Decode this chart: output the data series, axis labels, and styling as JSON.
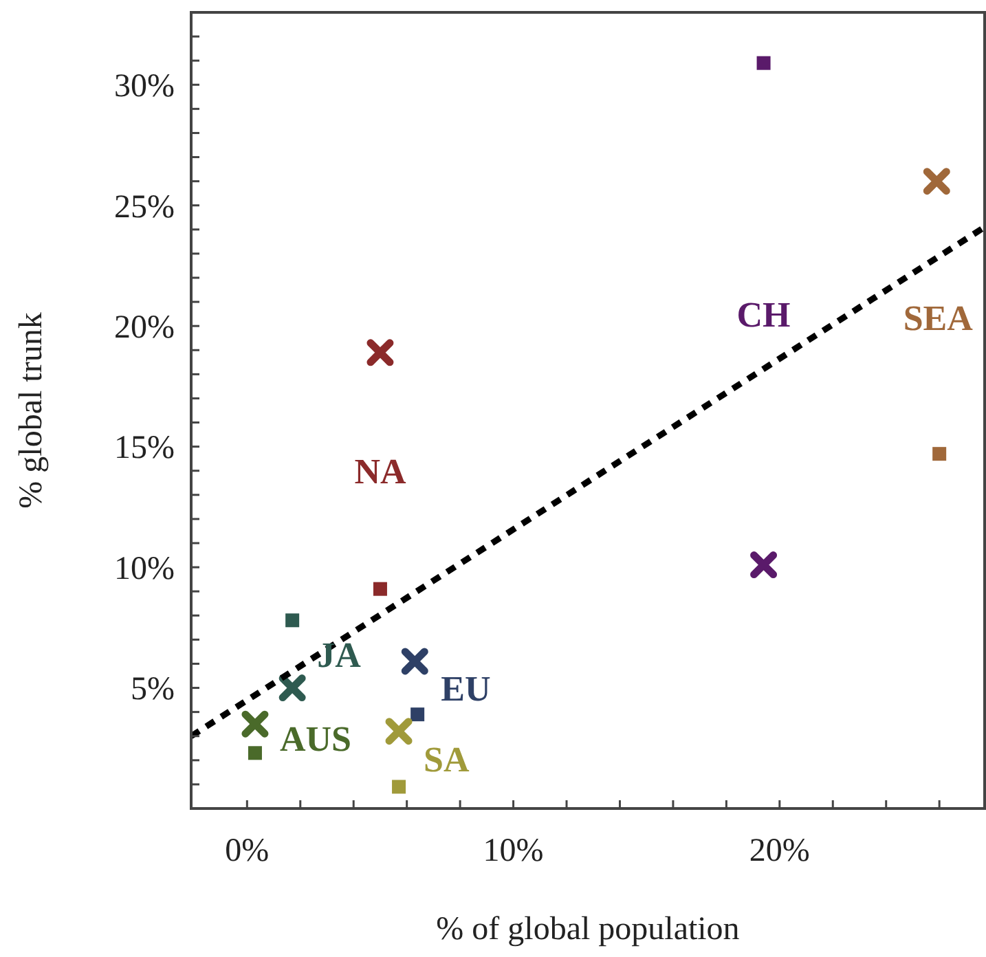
{
  "chart_data": {
    "type": "scatter",
    "xlabel": "% of global population",
    "ylabel": "% global trunk",
    "xlim": [
      -2.1,
      27.7
    ],
    "ylim": [
      0,
      33
    ],
    "xticks": [
      {
        "value": 0,
        "label": "0%"
      },
      {
        "value": 2,
        "label": null
      },
      {
        "value": 4,
        "label": null
      },
      {
        "value": 6,
        "label": null
      },
      {
        "value": 8,
        "label": null
      },
      {
        "value": 10,
        "label": "10%"
      },
      {
        "value": 12,
        "label": null
      },
      {
        "value": 14,
        "label": null
      },
      {
        "value": 16,
        "label": null
      },
      {
        "value": 18,
        "label": null
      },
      {
        "value": 20,
        "label": "20%"
      },
      {
        "value": 22,
        "label": null
      },
      {
        "value": 24,
        "label": null
      },
      {
        "value": 26,
        "label": null
      }
    ],
    "yticks": [
      {
        "value": 1,
        "label": null
      },
      {
        "value": 2,
        "label": null
      },
      {
        "value": 3,
        "label": null
      },
      {
        "value": 4,
        "label": null
      },
      {
        "value": 5,
        "label": "5%"
      },
      {
        "value": 6,
        "label": null
      },
      {
        "value": 7,
        "label": null
      },
      {
        "value": 8,
        "label": null
      },
      {
        "value": 9,
        "label": null
      },
      {
        "value": 10,
        "label": "10%"
      },
      {
        "value": 11,
        "label": null
      },
      {
        "value": 12,
        "label": null
      },
      {
        "value": 13,
        "label": null
      },
      {
        "value": 14,
        "label": null
      },
      {
        "value": 15,
        "label": "15%"
      },
      {
        "value": 16,
        "label": null
      },
      {
        "value": 17,
        "label": null
      },
      {
        "value": 18,
        "label": null
      },
      {
        "value": 19,
        "label": null
      },
      {
        "value": 20,
        "label": "20%"
      },
      {
        "value": 21,
        "label": null
      },
      {
        "value": 22,
        "label": null
      },
      {
        "value": 23,
        "label": null
      },
      {
        "value": 24,
        "label": null
      },
      {
        "value": 25,
        "label": "25%"
      },
      {
        "value": 26,
        "label": null
      },
      {
        "value": 27,
        "label": null
      },
      {
        "value": 28,
        "label": null
      },
      {
        "value": 29,
        "label": null
      },
      {
        "value": 30,
        "label": "30%"
      },
      {
        "value": 31,
        "label": null
      },
      {
        "value": 32,
        "label": null
      },
      {
        "value": 33,
        "label": null
      }
    ],
    "series": [
      {
        "name": "NA",
        "marker": "cross",
        "color": "#8b2a2a",
        "x": [
          5.0
        ],
        "values": [
          18.9
        ]
      },
      {
        "marker": "square",
        "color": "#8b2a2a",
        "x": [
          5.0
        ],
        "values": [
          9.1
        ]
      },
      {
        "name": "CH",
        "marker": "cross",
        "color": "#5a1a6a",
        "x": [
          19.4
        ],
        "values": [
          10.1
        ]
      },
      {
        "marker": "square",
        "color": "#5a1a6a",
        "x": [
          19.4
        ],
        "values": [
          30.9
        ]
      },
      {
        "name": "SEA",
        "marker": "cross",
        "color": "#a0683a",
        "x": [
          25.9
        ],
        "values": [
          26.0
        ]
      },
      {
        "marker": "square",
        "color": "#a0683a",
        "x": [
          26.0
        ],
        "values": [
          14.7
        ]
      },
      {
        "name": "JA",
        "marker": "cross",
        "color": "#2e5a50",
        "x": [
          1.7
        ],
        "values": [
          5.0
        ]
      },
      {
        "marker": "square",
        "color": "#2e5a50",
        "x": [
          1.7
        ],
        "values": [
          7.8
        ]
      },
      {
        "name": "EU",
        "marker": "cross",
        "color": "#2e4066",
        "x": [
          6.3
        ],
        "values": [
          6.1
        ]
      },
      {
        "marker": "square",
        "color": "#2e4066",
        "x": [
          6.4
        ],
        "values": [
          3.9
        ]
      },
      {
        "name": "SA",
        "marker": "cross",
        "color": "#a09a3a",
        "x": [
          5.7
        ],
        "values": [
          3.2
        ]
      },
      {
        "marker": "square",
        "color": "#a09a3a",
        "x": [
          5.7
        ],
        "values": [
          0.9
        ]
      },
      {
        "name": "AUS",
        "marker": "cross",
        "color": "#4a6a2a",
        "x": [
          0.3
        ],
        "values": [
          3.5
        ]
      },
      {
        "marker": "square",
        "color": "#4a6a2a",
        "x": [
          0.3
        ],
        "values": [
          2.3
        ]
      },
      {
        "type": "line",
        "line_style": "dashed",
        "color": "#000000",
        "x": [
          -2.1,
          27.7
        ],
        "values": [
          3.0,
          24.1
        ]
      }
    ]
  }
}
